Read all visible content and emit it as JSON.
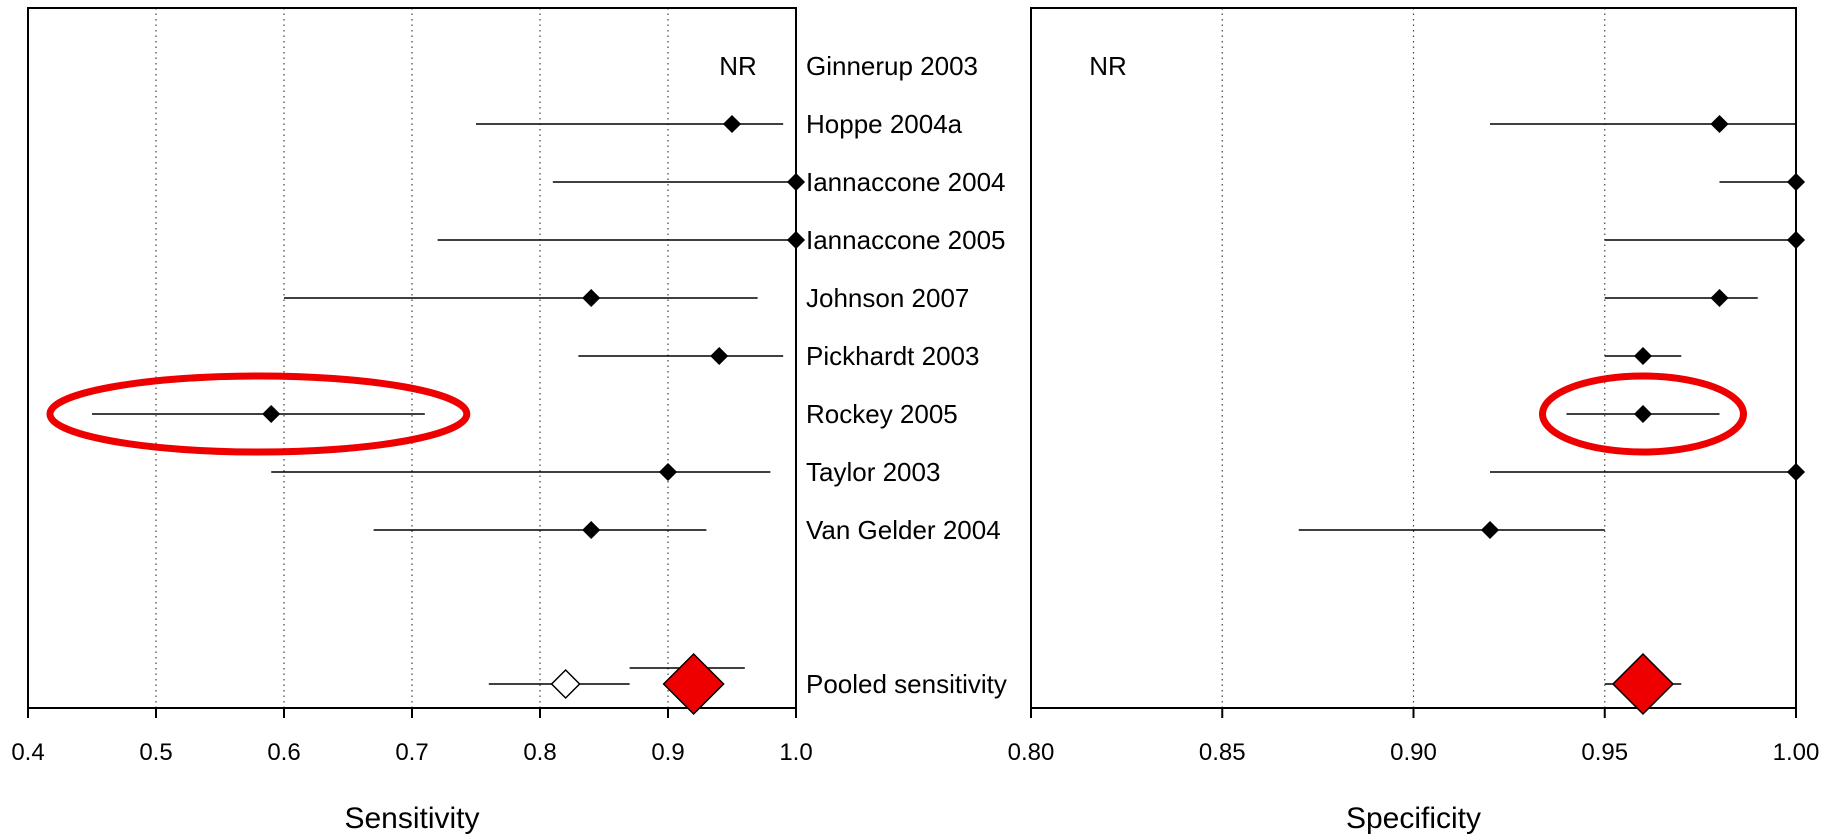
{
  "studies": [
    "Ginnerup 2003",
    "Hoppe 2004a",
    "Iannaccone 2004",
    "Iannaccone 2005",
    "Johnson 2007",
    "Pickhardt 2003",
    "Rockey 2005",
    "Taylor 2003",
    "Van Gelder 2004",
    "Pooled sensitivity"
  ],
  "chart_data": [
    {
      "type": "forest",
      "xlabel": "Sensitivity",
      "xlim": [
        0.4,
        1.0
      ],
      "xticks": [
        "0.4",
        "0.5",
        "0.6",
        "0.7",
        "0.8",
        "0.9",
        "1.0"
      ],
      "grid": "vertical dotted",
      "annotation": "NR",
      "estimates": [
        {
          "study": "Ginnerup 2003",
          "text": "NR"
        },
        {
          "study": "Hoppe 2004a",
          "value": 0.95,
          "ci": [
            0.75,
            0.99
          ]
        },
        {
          "study": "Iannaccone 2004",
          "value": 1.0,
          "ci": [
            0.81,
            1.0
          ]
        },
        {
          "study": "Iannaccone 2005",
          "value": 1.0,
          "ci": [
            0.72,
            1.0
          ]
        },
        {
          "study": "Johnson 2007",
          "value": 0.84,
          "ci": [
            0.6,
            0.97
          ]
        },
        {
          "study": "Pickhardt 2003",
          "value": 0.94,
          "ci": [
            0.83,
            0.99
          ]
        },
        {
          "study": "Rockey 2005",
          "value": 0.59,
          "ci": [
            0.45,
            0.71
          ],
          "highlighted": true
        },
        {
          "study": "Taylor 2003",
          "value": 0.9,
          "ci": [
            0.59,
            0.98
          ]
        },
        {
          "study": "Van Gelder 2004",
          "value": 0.84,
          "ci": [
            0.67,
            0.93
          ]
        }
      ],
      "pooled": [
        {
          "value": 0.82,
          "ci": [
            0.76,
            0.87
          ],
          "style": "hollow"
        },
        {
          "value": 0.92,
          "ci": [
            0.87,
            0.96
          ],
          "style": "red"
        }
      ]
    },
    {
      "type": "forest",
      "xlabel": "Specificity",
      "xlim": [
        0.8,
        1.0
      ],
      "xticks": [
        "0.80",
        "0.85",
        "0.90",
        "0.95",
        "1.00"
      ],
      "grid": "vertical dotted",
      "annotation": "NR",
      "estimates": [
        {
          "study": "Ginnerup 2003",
          "text": "NR"
        },
        {
          "study": "Hoppe 2004a",
          "value": 0.98,
          "ci": [
            0.92,
            1.0
          ]
        },
        {
          "study": "Iannaccone 2004",
          "value": 1.0,
          "ci": [
            0.98,
            1.0
          ]
        },
        {
          "study": "Iannaccone 2005",
          "value": 1.0,
          "ci": [
            0.95,
            1.0
          ]
        },
        {
          "study": "Johnson 2007",
          "value": 0.98,
          "ci": [
            0.95,
            0.99
          ]
        },
        {
          "study": "Pickhardt 2003",
          "value": 0.96,
          "ci": [
            0.95,
            0.97
          ]
        },
        {
          "study": "Rockey 2005",
          "value": 0.96,
          "ci": [
            0.94,
            0.98
          ],
          "highlighted": true
        },
        {
          "study": "Taylor 2003",
          "value": 1.0,
          "ci": [
            0.92,
            1.0
          ]
        },
        {
          "study": "Van Gelder 2004",
          "value": 0.92,
          "ci": [
            0.87,
            0.95
          ]
        }
      ],
      "pooled": [
        {
          "value": 0.96,
          "ci": [
            0.95,
            0.97
          ],
          "style": "red"
        }
      ]
    }
  ],
  "colors": {
    "marker": "#000000",
    "pooled_fill": "#ee0000",
    "highlight": "#ee0000",
    "grid": "#444444"
  }
}
